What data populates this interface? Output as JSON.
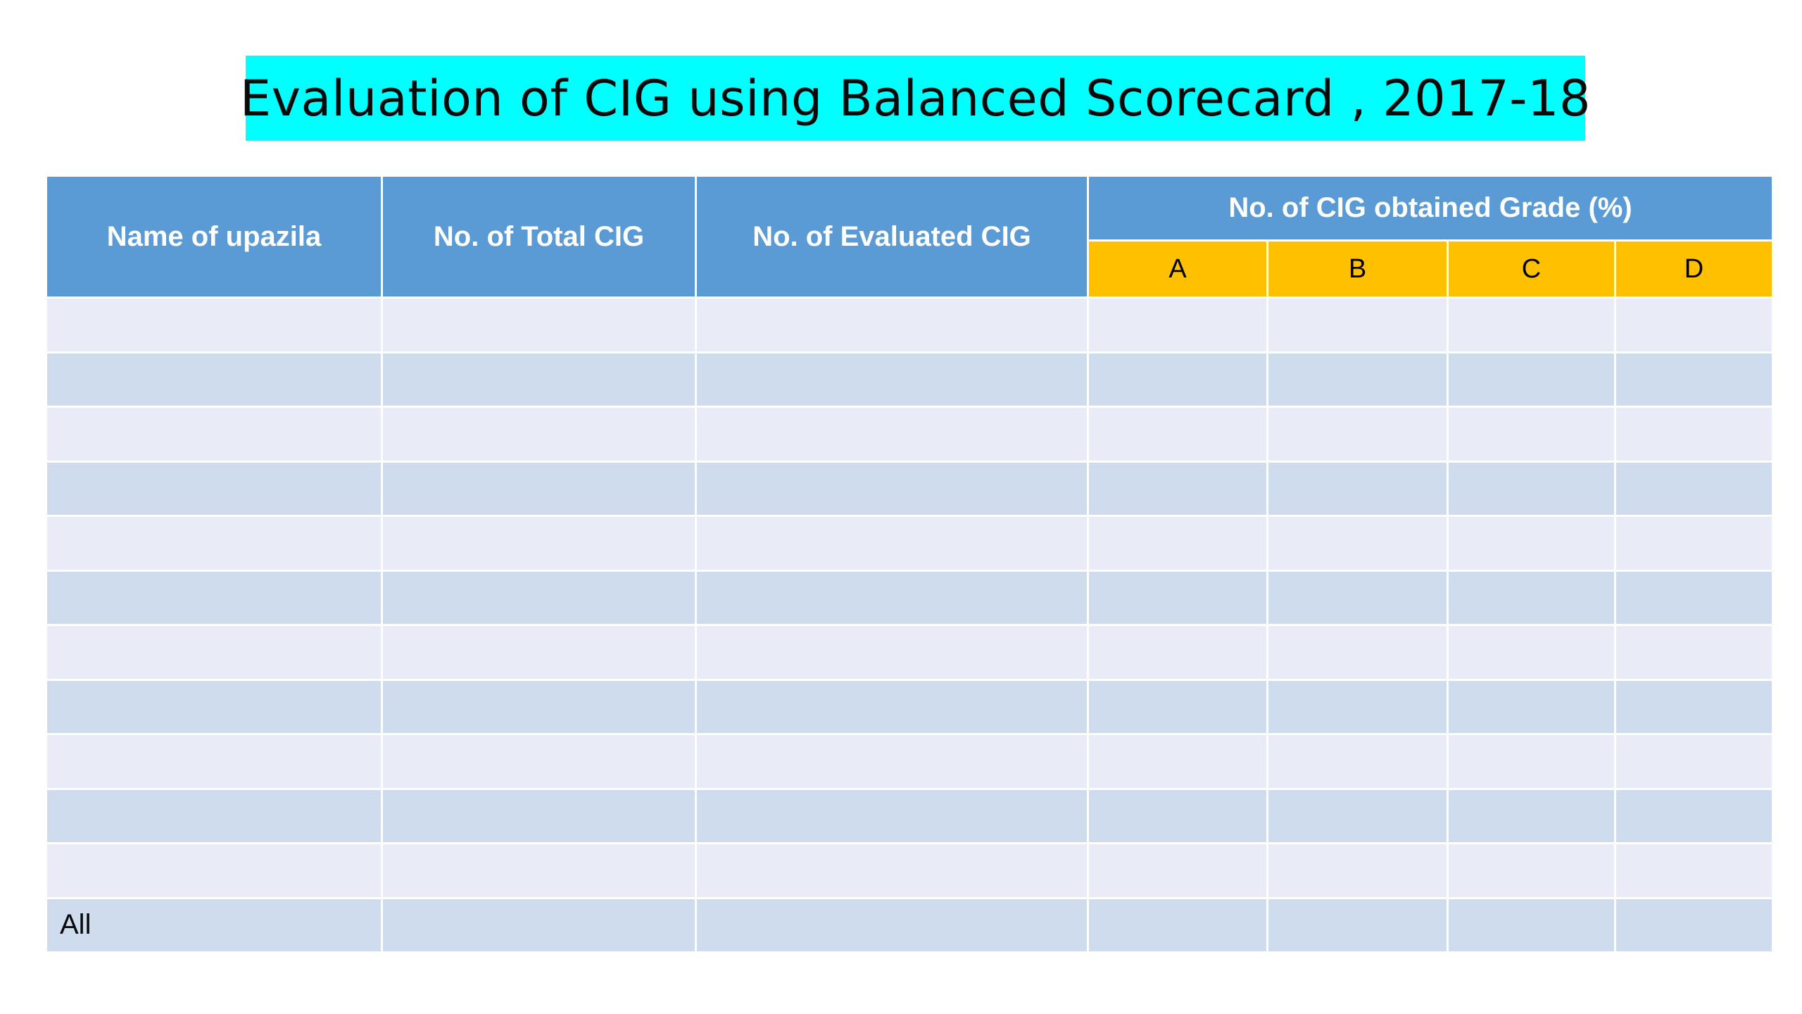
{
  "title": "Evaluation of CIG using Balanced Scorecard , 2017-18",
  "colors": {
    "title_bg": "#00ffff",
    "header_bg": "#5b9bd5",
    "grade_header_bg": "#ffc000",
    "row_light": "#e9ecf6",
    "row_dark": "#cfdcee"
  },
  "table": {
    "headers": {
      "upazila": "Name of upazila",
      "total_cig": "No. of Total CIG",
      "evaluated_cig": "No. of Evaluated CIG",
      "grade_group": "No. of CIG obtained Grade (%)",
      "grades": [
        "A",
        "B",
        "C",
        "D"
      ]
    },
    "rows": [
      {
        "upazila": "",
        "total": "",
        "evaluated": "",
        "a": "",
        "b": "",
        "c": "",
        "d": ""
      },
      {
        "upazila": "",
        "total": "",
        "evaluated": "",
        "a": "",
        "b": "",
        "c": "",
        "d": ""
      },
      {
        "upazila": "",
        "total": "",
        "evaluated": "",
        "a": "",
        "b": "",
        "c": "",
        "d": ""
      },
      {
        "upazila": "",
        "total": "",
        "evaluated": "",
        "a": "",
        "b": "",
        "c": "",
        "d": ""
      },
      {
        "upazila": "",
        "total": "",
        "evaluated": "",
        "a": "",
        "b": "",
        "c": "",
        "d": ""
      },
      {
        "upazila": "",
        "total": "",
        "evaluated": "",
        "a": "",
        "b": "",
        "c": "",
        "d": ""
      },
      {
        "upazila": "",
        "total": "",
        "evaluated": "",
        "a": "",
        "b": "",
        "c": "",
        "d": ""
      },
      {
        "upazila": "",
        "total": "",
        "evaluated": "",
        "a": "",
        "b": "",
        "c": "",
        "d": ""
      },
      {
        "upazila": "",
        "total": "",
        "evaluated": "",
        "a": "",
        "b": "",
        "c": "",
        "d": ""
      },
      {
        "upazila": "",
        "total": "",
        "evaluated": "",
        "a": "",
        "b": "",
        "c": "",
        "d": ""
      },
      {
        "upazila": "",
        "total": "",
        "evaluated": "",
        "a": "",
        "b": "",
        "c": "",
        "d": ""
      },
      {
        "upazila": "All",
        "total": "",
        "evaluated": "",
        "a": "",
        "b": "",
        "c": "",
        "d": ""
      }
    ]
  }
}
